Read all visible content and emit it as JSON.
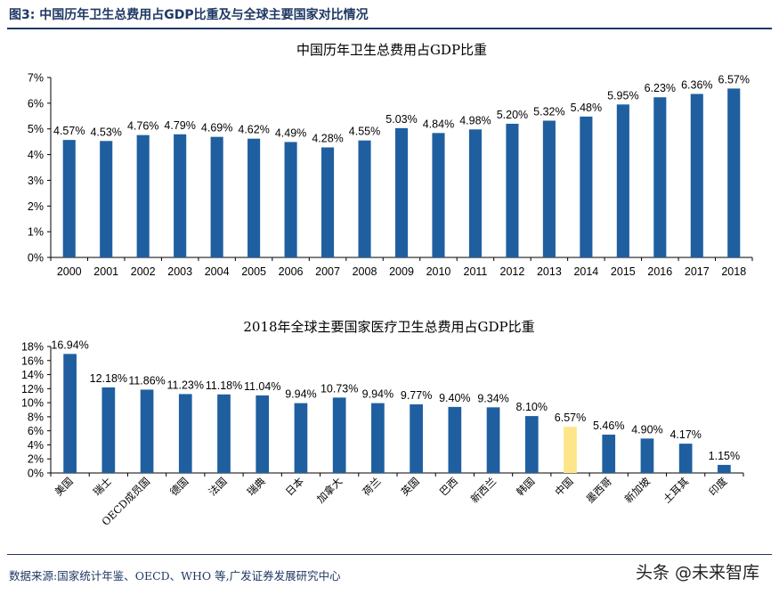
{
  "header": {
    "title": "图3:  中国历年卫生总费用占GDP比重及与全球主要国家对比情况"
  },
  "footer": {
    "source": "数据来源:国家统计年鉴、OECD、WHO 等,广发证券发展研究中心",
    "watermark": "头条 @未来智库"
  },
  "colors": {
    "bar": "#1f5fa0",
    "highlight": "#fde68a",
    "axis": "#000000",
    "header": "#1f3864"
  },
  "chart_data": [
    {
      "type": "bar",
      "title": "中国历年卫生总费用占GDP比重",
      "categories": [
        "2000",
        "2001",
        "2002",
        "2003",
        "2004",
        "2005",
        "2006",
        "2007",
        "2008",
        "2009",
        "2010",
        "2011",
        "2012",
        "2013",
        "2014",
        "2015",
        "2016",
        "2017",
        "2018"
      ],
      "values": [
        4.57,
        4.53,
        4.76,
        4.79,
        4.69,
        4.62,
        4.49,
        4.28,
        4.55,
        5.03,
        4.84,
        4.98,
        5.2,
        5.32,
        5.48,
        5.95,
        6.23,
        6.36,
        6.57
      ],
      "labels": [
        "4.57%",
        "4.53%",
        "4.76%",
        "4.79%",
        "4.69%",
        "4.62%",
        "4.49%",
        "4.28%",
        "4.55%",
        "5.03%",
        "4.84%",
        "4.98%",
        "5.20%",
        "5.32%",
        "5.48%",
        "5.95%",
        "6.23%",
        "6.36%",
        "6.57%"
      ],
      "yticks": [
        "0%",
        "1%",
        "2%",
        "3%",
        "4%",
        "5%",
        "6%",
        "7%"
      ],
      "ylim": [
        0,
        7
      ],
      "ystep": 1,
      "xlabel": "",
      "ylabel": "",
      "grid": false
    },
    {
      "type": "bar",
      "title": "2018年全球主要国家医疗卫生总费用占GDP比重",
      "categories": [
        "美国",
        "瑞士",
        "OECD成员国",
        "德国",
        "法国",
        "瑞典",
        "日本",
        "加拿大",
        "荷兰",
        "英国",
        "巴西",
        "新西兰",
        "韩国",
        "中国",
        "墨西哥",
        "新加坡",
        "土耳其",
        "印度"
      ],
      "values": [
        16.94,
        12.18,
        11.86,
        11.23,
        11.18,
        11.04,
        9.94,
        10.73,
        9.94,
        9.77,
        9.4,
        9.34,
        8.1,
        6.57,
        5.46,
        4.9,
        4.17,
        1.15
      ],
      "labels": [
        "16.94%",
        "12.18%",
        "11.86%",
        "11.23%",
        "11.18%",
        "11.04%",
        "9.94%",
        "10.73%",
        "9.94%",
        "9.77%",
        "9.40%",
        "9.34%",
        "8.10%",
        "6.57%",
        "5.46%",
        "4.90%",
        "4.17%",
        "1.15%"
      ],
      "highlight_category": "中国",
      "yticks": [
        "0%",
        "2%",
        "4%",
        "6%",
        "8%",
        "10%",
        "12%",
        "14%",
        "16%",
        "18%"
      ],
      "ylim": [
        0,
        18
      ],
      "ystep": 2,
      "xlabel": "",
      "ylabel": "",
      "grid": false
    }
  ]
}
